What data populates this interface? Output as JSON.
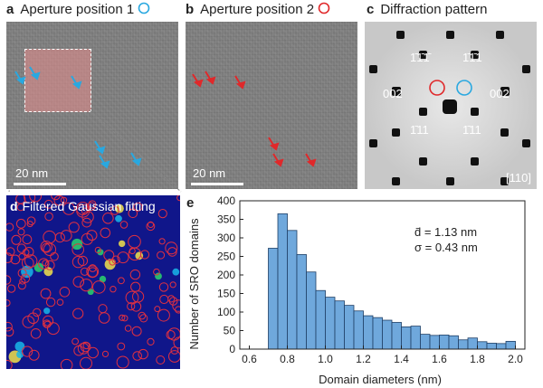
{
  "panel_a": {
    "letter": "a",
    "title": "Aperture position 1",
    "scale_bar": "20 nm",
    "marker_color": "#29a8e0"
  },
  "panel_b": {
    "letter": "b",
    "title": "Aperture position 2",
    "scale_bar": "20 nm",
    "marker_color": "#e0282a"
  },
  "panel_c": {
    "letter": "c",
    "title": "Diffraction pattern",
    "labels": {
      "top_left": "1̄1̄1̄",
      "top_right": "1̄1̄1",
      "left": "002",
      "right": "002",
      "bottom_left": "1̄11",
      "bottom_right": "1̄11"
    },
    "zone_axis": "[110]"
  },
  "panel_d": {
    "letter": "d",
    "title": "Filtered Gaussian fitting"
  },
  "panel_e": {
    "letter": "e",
    "stats": {
      "mean": "d̄ = 1.13 nm",
      "sigma": "σ = 0.43 nm"
    }
  },
  "chart_data": {
    "type": "bar",
    "title": "",
    "xlabel": "Domain diameters (nm)",
    "ylabel": "Number of SRO domains",
    "xlim": [
      0.55,
      2.05
    ],
    "ylim": [
      0,
      400
    ],
    "xticks": [
      "0.6",
      "0.8",
      "1.0",
      "1.2",
      "1.4",
      "1.6",
      "1.8",
      "2.0"
    ],
    "yticks": [
      "0",
      "50",
      "100",
      "150",
      "200",
      "250",
      "300",
      "350",
      "400"
    ],
    "bin_width": 0.05,
    "bin_starts": [
      0.7,
      0.75,
      0.8,
      0.85,
      0.9,
      0.95,
      1.0,
      1.05,
      1.1,
      1.15,
      1.2,
      1.25,
      1.3,
      1.35,
      1.4,
      1.45,
      1.5,
      1.55,
      1.6,
      1.65,
      1.7,
      1.75,
      1.8,
      1.85,
      1.9,
      1.95
    ],
    "values": [
      272,
      365,
      320,
      255,
      208,
      158,
      140,
      130,
      118,
      103,
      90,
      85,
      78,
      72,
      60,
      62,
      40,
      37,
      38,
      36,
      25,
      30,
      20,
      16,
      15,
      21
    ],
    "bar_color": "#6fa8dc"
  }
}
